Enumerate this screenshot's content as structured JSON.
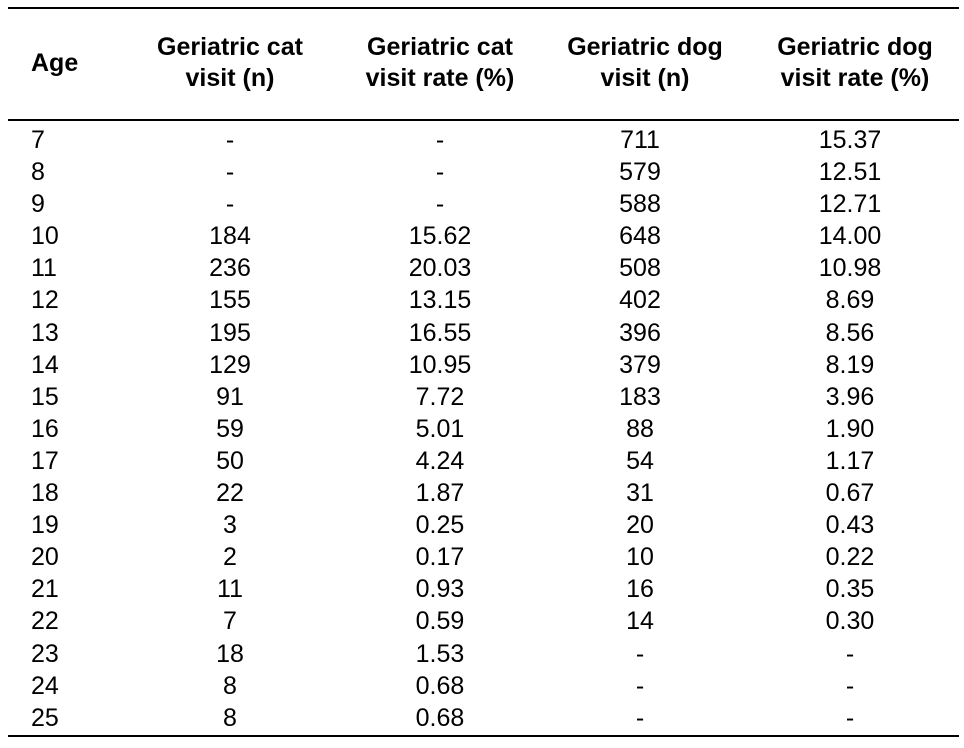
{
  "table": {
    "headers": {
      "age": "Age",
      "cat_visit_line1": "Geriatric cat",
      "cat_visit_line2": "visit (n)",
      "cat_rate_line1": "Geriatric cat",
      "cat_rate_line2": "visit rate (%)",
      "dog_visit_line1": "Geriatric dog",
      "dog_visit_line2": "visit (n)",
      "dog_rate_line1": "Geriatric dog",
      "dog_rate_line2": "visit rate (%)"
    },
    "rows": [
      {
        "age": "7",
        "cat_n": "-",
        "cat_rate": "-",
        "dog_n": "711",
        "dog_rate": "15.37"
      },
      {
        "age": "8",
        "cat_n": "-",
        "cat_rate": "-",
        "dog_n": "579",
        "dog_rate": "12.51"
      },
      {
        "age": "9",
        "cat_n": "-",
        "cat_rate": "-",
        "dog_n": "588",
        "dog_rate": "12.71"
      },
      {
        "age": "10",
        "cat_n": "184",
        "cat_rate": "15.62",
        "dog_n": "648",
        "dog_rate": "14.00"
      },
      {
        "age": "11",
        "cat_n": "236",
        "cat_rate": "20.03",
        "dog_n": "508",
        "dog_rate": "10.98"
      },
      {
        "age": "12",
        "cat_n": "155",
        "cat_rate": "13.15",
        "dog_n": "402",
        "dog_rate": "8.69"
      },
      {
        "age": "13",
        "cat_n": "195",
        "cat_rate": "16.55",
        "dog_n": "396",
        "dog_rate": "8.56"
      },
      {
        "age": "14",
        "cat_n": "129",
        "cat_rate": "10.95",
        "dog_n": "379",
        "dog_rate": "8.19"
      },
      {
        "age": "15",
        "cat_n": "91",
        "cat_rate": "7.72",
        "dog_n": "183",
        "dog_rate": "3.96"
      },
      {
        "age": "16",
        "cat_n": "59",
        "cat_rate": "5.01",
        "dog_n": "88",
        "dog_rate": "1.90"
      },
      {
        "age": "17",
        "cat_n": "50",
        "cat_rate": "4.24",
        "dog_n": "54",
        "dog_rate": "1.17"
      },
      {
        "age": "18",
        "cat_n": "22",
        "cat_rate": "1.87",
        "dog_n": "31",
        "dog_rate": "0.67"
      },
      {
        "age": "19",
        "cat_n": "3",
        "cat_rate": "0.25",
        "dog_n": "20",
        "dog_rate": "0.43"
      },
      {
        "age": "20",
        "cat_n": "2",
        "cat_rate": "0.17",
        "dog_n": "10",
        "dog_rate": "0.22"
      },
      {
        "age": "21",
        "cat_n": "11",
        "cat_rate": "0.93",
        "dog_n": "16",
        "dog_rate": "0.35"
      },
      {
        "age": "22",
        "cat_n": "7",
        "cat_rate": "0.59",
        "dog_n": "14",
        "dog_rate": "0.30"
      },
      {
        "age": "23",
        "cat_n": "18",
        "cat_rate": "1.53",
        "dog_n": "-",
        "dog_rate": "-"
      },
      {
        "age": "24",
        "cat_n": "8",
        "cat_rate": "0.68",
        "dog_n": "-",
        "dog_rate": "-"
      },
      {
        "age": "25",
        "cat_n": "8",
        "cat_rate": "0.68",
        "dog_n": "-",
        "dog_rate": "-"
      }
    ]
  }
}
